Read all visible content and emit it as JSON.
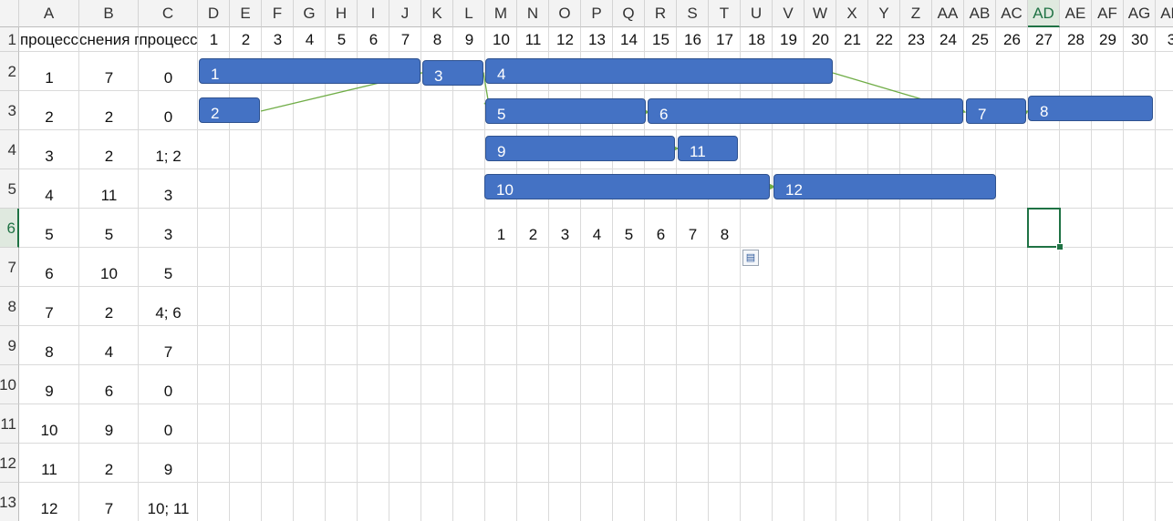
{
  "sheet": {
    "columns": [
      "A",
      "B",
      "C",
      "D",
      "E",
      "F",
      "G",
      "H",
      "I",
      "J",
      "K",
      "L",
      "M",
      "N",
      "O",
      "P",
      "Q",
      "R",
      "S",
      "T",
      "U",
      "V",
      "W",
      "X",
      "Y",
      "Z",
      "AA",
      "AB",
      "AC",
      "AD",
      "AE",
      "AF",
      "AG",
      "AH"
    ],
    "selected_column": "AD",
    "selected_row": "6",
    "rows": [
      "1",
      "2",
      "3",
      "4",
      "5",
      "6",
      "7",
      "8",
      "9",
      "10",
      "11",
      "12",
      "13"
    ],
    "header_row": {
      "A": "процесс",
      "B": "снения пр",
      "C": "процесс",
      "numbers": [
        "1",
        "2",
        "3",
        "4",
        "5",
        "6",
        "7",
        "8",
        "9",
        "10",
        "11",
        "12",
        "13",
        "14",
        "15",
        "16",
        "17",
        "18",
        "19",
        "20",
        "21",
        "22",
        "23",
        "24",
        "25",
        "26",
        "27",
        "28",
        "29",
        "30",
        "3"
      ]
    },
    "table": [
      [
        "1",
        "7",
        "0"
      ],
      [
        "2",
        "2",
        "0"
      ],
      [
        "3",
        "2",
        "1; 2"
      ],
      [
        "4",
        "11",
        "3"
      ],
      [
        "5",
        "5",
        "3"
      ],
      [
        "6",
        "10",
        "5"
      ],
      [
        "7",
        "2",
        "4; 6"
      ],
      [
        "8",
        "4",
        "7"
      ],
      [
        "9",
        "6",
        "0"
      ],
      [
        "10",
        "9",
        "0"
      ],
      [
        "11",
        "2",
        "9"
      ],
      [
        "12",
        "7",
        "10; 11"
      ]
    ],
    "row6_numbers": [
      "1",
      "2",
      "3",
      "4",
      "5",
      "6",
      "7",
      "8"
    ]
  },
  "gantt": {
    "bar_color": "#4472c4",
    "arrow_color": "#70ad47",
    "bars": [
      {
        "label": "1"
      },
      {
        "label": "2"
      },
      {
        "label": "3"
      },
      {
        "label": "4"
      },
      {
        "label": "5"
      },
      {
        "label": "6"
      },
      {
        "label": "7"
      },
      {
        "label": "8"
      },
      {
        "label": "9"
      },
      {
        "label": "11"
      },
      {
        "label": "10"
      },
      {
        "label": "12"
      }
    ]
  },
  "icons": {
    "paste_options": "paste-options-icon"
  }
}
